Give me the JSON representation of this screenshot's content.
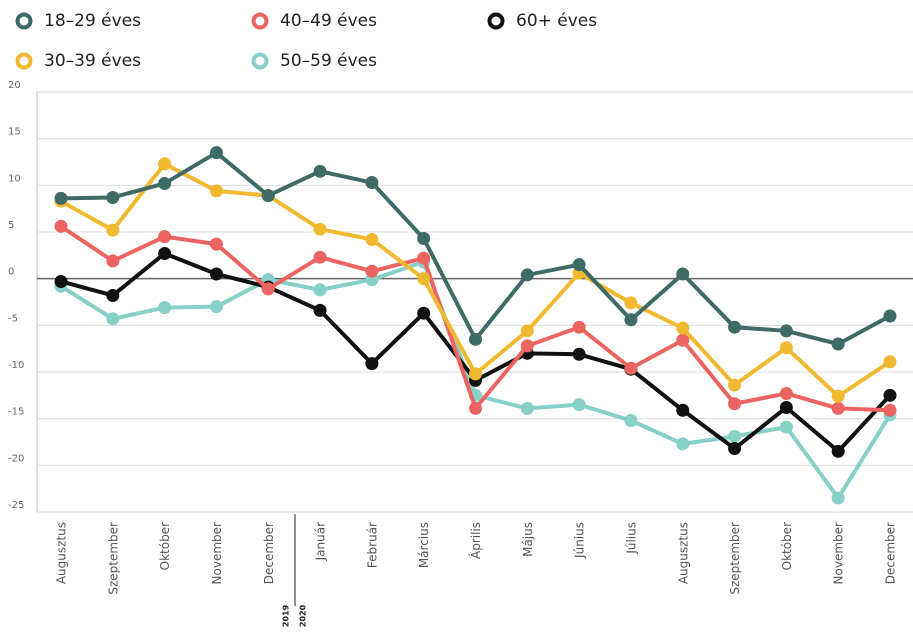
{
  "chart_data": {
    "type": "line",
    "categories": [
      "Augusztus",
      "Szeptember",
      "Október",
      "November",
      "December",
      "Január",
      "Február",
      "Március",
      "Április",
      "Május",
      "Június",
      "Július",
      "Augusztus",
      "Szeptember",
      "Október",
      "November",
      "December"
    ],
    "annotations": [
      "2019",
      "2020"
    ],
    "series": [
      {
        "name": "18–29 éves",
        "color": "#3e6b65",
        "values": [
          8.6,
          8.7,
          10.2,
          13.5,
          8.9,
          11.5,
          10.3,
          4.3,
          -6.5,
          0.4,
          1.5,
          -4.4,
          0.5,
          -5.2,
          -5.6,
          -7.0,
          -4.0
        ]
      },
      {
        "name": "30–39 éves",
        "color": "#f1b92f",
        "values": [
          8.3,
          5.2,
          12.3,
          9.4,
          8.9,
          5.3,
          4.2,
          0.0,
          -10.2,
          -5.6,
          0.6,
          -2.6,
          -5.3,
          -11.4,
          -7.4,
          -12.6,
          -8.9
        ]
      },
      {
        "name": "40–49 éves",
        "color": "#ec6461",
        "values": [
          5.6,
          1.9,
          4.5,
          3.7,
          -1.1,
          2.3,
          0.8,
          2.2,
          -13.9,
          -7.2,
          -5.2,
          -9.6,
          -6.6,
          -13.4,
          -12.3,
          -13.9,
          -14.1
        ]
      },
      {
        "name": "50–59 éves",
        "color": "#86d0c8",
        "values": [
          -0.8,
          -4.3,
          -3.1,
          -3.0,
          -0.1,
          -1.2,
          -0.1,
          1.8,
          -12.5,
          -13.9,
          -13.5,
          -15.2,
          -17.7,
          -16.9,
          -15.9,
          -23.5,
          -14.6
        ]
      },
      {
        "name": "60+ éves",
        "color": "#111111",
        "values": [
          -0.3,
          -1.8,
          2.7,
          0.5,
          -0.9,
          -3.4,
          -9.1,
          -3.7,
          -10.9,
          -8.0,
          -8.1,
          -9.7,
          -14.1,
          -18.2,
          -13.8,
          -18.5,
          -12.5
        ]
      }
    ],
    "ylim": [
      -25,
      20
    ],
    "yticks": [
      -25,
      -20,
      -15,
      -10,
      -5,
      0,
      5,
      10,
      15,
      20
    ],
    "grid": true
  }
}
